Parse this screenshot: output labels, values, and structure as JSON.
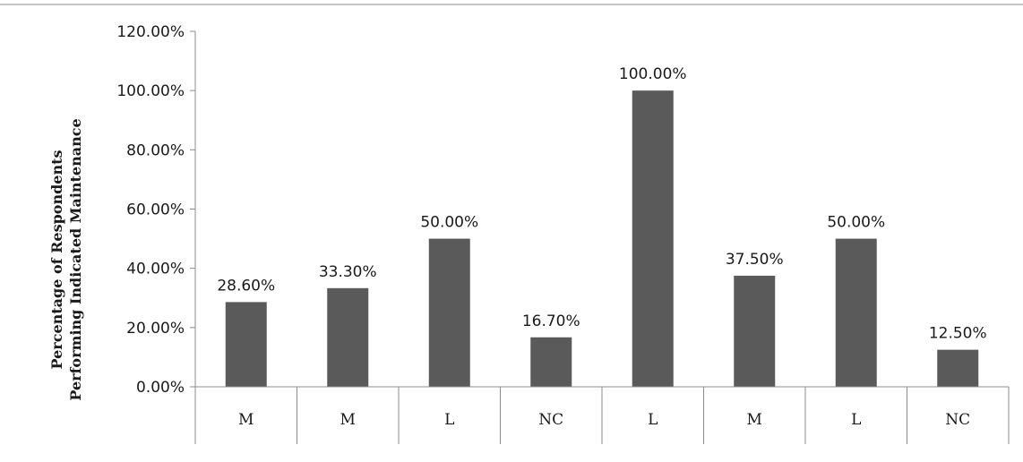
{
  "chart_data": {
    "type": "bar",
    "categories": [
      "M",
      "M",
      "L",
      "NC",
      "L",
      "M",
      "L",
      "NC"
    ],
    "values": [
      28.6,
      33.3,
      50.0,
      16.7,
      100.0,
      37.5,
      50.0,
      12.5
    ],
    "data_labels": [
      "28.60%",
      "33.30%",
      "50.00%",
      "16.70%",
      "100.00%",
      "37.50%",
      "50.00%",
      "12.50%"
    ],
    "yticks": [
      0,
      20,
      40,
      60,
      80,
      100,
      120
    ],
    "ytick_labels": [
      "0.00%",
      "20.00%",
      "40.00%",
      "60.00%",
      "80.00%",
      "100.00%",
      "120.00%"
    ],
    "ylim": [
      0,
      120
    ],
    "ylabel_line1": "Percentage of Respondents",
    "ylabel_line2": "Performing Indicated Maintenance",
    "xlabel": "",
    "title": "",
    "grid": false,
    "bar_color": "#5a5a5a",
    "axis_color": "#8c8c8c"
  }
}
